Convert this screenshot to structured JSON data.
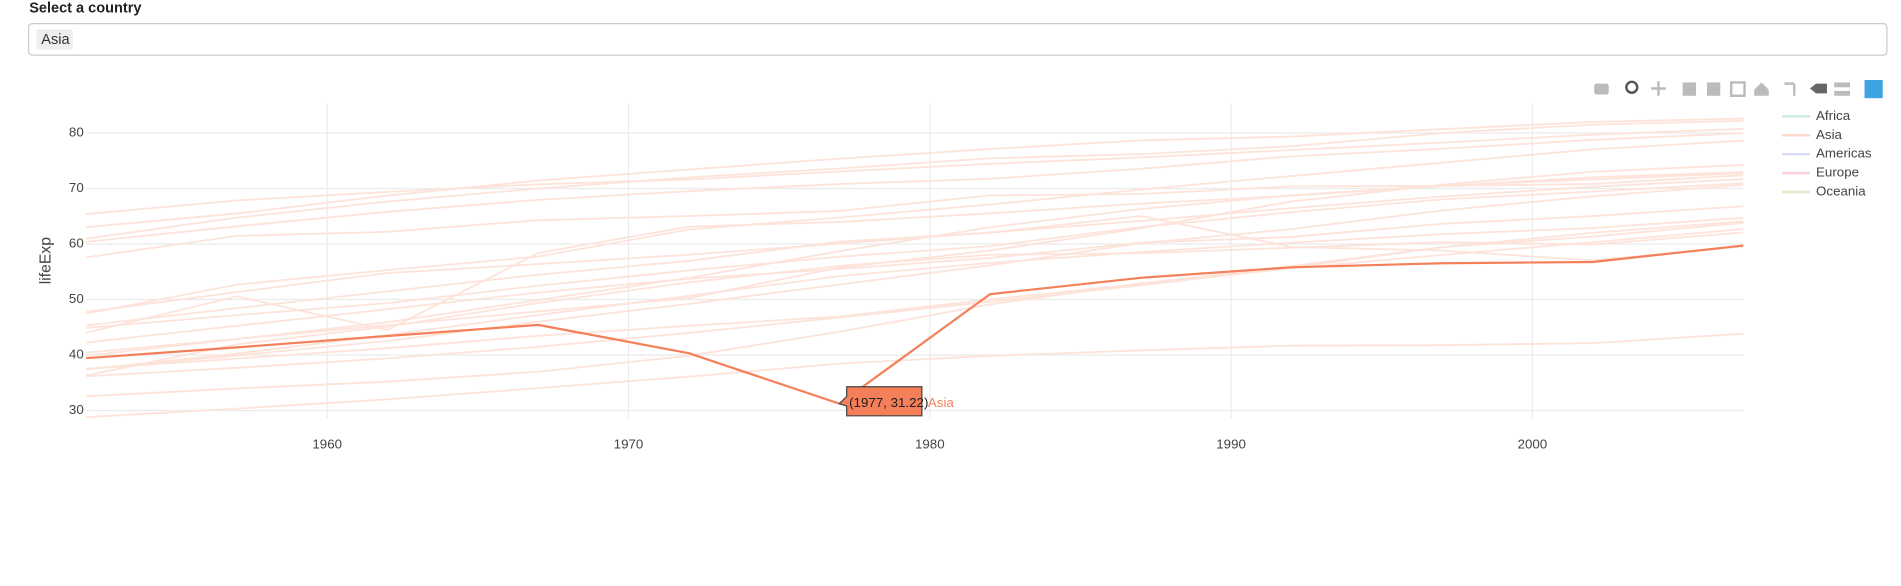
{
  "control": {
    "label": "Select a country",
    "value": "Asia"
  },
  "chart_data": {
    "type": "line",
    "ylabel": "lifeExp",
    "x": [
      1952,
      1957,
      1962,
      1967,
      1972,
      1977,
      1982,
      1987,
      1992,
      1997,
      2002,
      2007
    ],
    "xlim": [
      1952,
      2007
    ],
    "ylim": [
      28.6,
      85.4
    ],
    "xticks": [
      1960,
      1970,
      1980,
      1990,
      2000
    ],
    "yticks": [
      30,
      40,
      50,
      60,
      70,
      80
    ],
    "grid": true,
    "legend": [
      {
        "name": "Africa",
        "color": "#c9ece3"
      },
      {
        "name": "Asia",
        "color": "#fcd6c8"
      },
      {
        "name": "Americas",
        "color": "#d9dcf7"
      },
      {
        "name": "Europe",
        "color": "#f7d0da"
      },
      {
        "name": "Oceania",
        "color": "#e4ecca"
      }
    ],
    "series": [
      {
        "color": "#f47f58",
        "values": [
          39.42,
          41.37,
          43.42,
          45.42,
          40.32,
          31.22,
          50.96,
          53.91,
          55.8,
          56.53,
          56.75,
          59.72
        ]
      },
      {
        "color": "#fde3da",
        "values": [
          28.8,
          30.33,
          32.0,
          34.02,
          36.09,
          38.44,
          39.85,
          40.82,
          41.67,
          41.76,
          42.13,
          43.83
        ]
      },
      {
        "color": "#fde3da",
        "values": [
          37.48,
          39.35,
          41.22,
          43.45,
          45.25,
          46.92,
          50.01,
          52.82,
          56.02,
          59.41,
          62.01,
          64.06
        ]
      },
      {
        "color": "#fde3da",
        "values": [
          44.0,
          50.55,
          44.5,
          58.38,
          63.12,
          63.97,
          65.53,
          67.27,
          68.69,
          70.43,
          72.03,
          72.96
        ]
      },
      {
        "color": "#fde3da",
        "values": [
          37.37,
          40.25,
          43.61,
          47.19,
          50.65,
          54.21,
          56.6,
          58.55,
          60.22,
          61.77,
          62.88,
          64.7
        ]
      },
      {
        "color": "#fde3da",
        "values": [
          63.03,
          65.5,
          68.73,
          71.43,
          73.42,
          75.38,
          77.11,
          78.67,
          79.36,
          80.69,
          82.0,
          82.6
        ]
      },
      {
        "color": "#fde3da",
        "values": [
          60.96,
          64.75,
          67.65,
          70.0,
          72.0,
          73.6,
          75.45,
          76.2,
          77.6,
          80.0,
          81.5,
          82.21
        ]
      },
      {
        "color": "#fde3da",
        "values": [
          65.39,
          67.84,
          69.39,
          70.75,
          71.63,
          73.06,
          74.45,
          75.6,
          76.93,
          78.27,
          79.7,
          80.75
        ]
      },
      {
        "color": "#fde3da",
        "values": [
          45.32,
          48.44,
          51.46,
          54.46,
          56.95,
          60.41,
          62.04,
          65.04,
          59.46,
          58.81,
          57.05,
          59.55
        ]
      },
      {
        "color": "#fde3da",
        "values": [
          44.87,
          47.18,
          49.33,
          52.47,
          55.23,
          57.7,
          59.62,
          63.04,
          65.74,
          68.04,
          69.45,
          70.96
        ]
      },
      {
        "color": "#fde3da",
        "values": [
          40.41,
          42.89,
          45.36,
          47.84,
          50.25,
          55.76,
          58.82,
          62.82,
          67.66,
          70.67,
          73.02,
          74.25
        ]
      },
      {
        "color": "#fde3da",
        "values": [
          32.55,
          33.97,
          35.18,
          36.98,
          39.85,
          44.18,
          49.11,
          52.92,
          55.6,
          58.02,
          60.31,
          62.7
        ]
      },
      {
        "color": "#fde3da",
        "values": [
          36.16,
          37.69,
          39.39,
          41.47,
          43.97,
          46.75,
          49.59,
          52.54,
          55.73,
          59.43,
          61.34,
          63.79
        ]
      },
      {
        "color": "#fde3da",
        "values": [
          47.45,
          52.68,
          55.29,
          57.72,
          62.61,
          64.77,
          67.12,
          69.81,
          72.24,
          74.65,
          77.05,
          78.62
        ]
      },
      {
        "color": "#fde3da",
        "values": [
          37.47,
          39.92,
          42.52,
          46.0,
          49.2,
          52.7,
          56.16,
          60.14,
          62.68,
          66.04,
          68.59,
          70.65
        ]
      },
      {
        "color": "#fde3da",
        "values": [
          39.88,
          42.87,
          45.91,
          49.9,
          53.89,
          58.69,
          63.01,
          66.3,
          68.77,
          70.53,
          71.63,
          72.78
        ]
      },
      {
        "color": "#fde3da",
        "values": [
          42.24,
          45.25,
          48.25,
          51.25,
          53.75,
          55.49,
          57.49,
          60.22,
          61.27,
          63.63,
          65.03,
          66.8
        ]
      },
      {
        "color": "#fde3da",
        "values": [
          36.32,
          41.91,
          45.11,
          49.38,
          53.07,
          56.06,
          58.06,
          58.34,
          59.32,
          60.33,
          59.91,
          62.07
        ]
      },
      {
        "color": "#fde3da",
        "values": [
          60.4,
          63.18,
          65.8,
          67.95,
          69.52,
          70.8,
          71.76,
          73.56,
          75.79,
          77.16,
          78.77,
          79.97
        ]
      },
      {
        "color": "#fde3da",
        "values": [
          57.59,
          61.46,
          62.19,
          64.27,
          65.04,
          65.95,
          68.76,
          69.01,
          70.38,
          70.46,
          70.82,
          72.4
        ]
      },
      {
        "color": "#fde3da",
        "values": [
          47.75,
          51.33,
          54.76,
          56.39,
          58.07,
          60.06,
          62.08,
          64.15,
          66.46,
          68.56,
          70.3,
          71.69
        ]
      }
    ],
    "hover": {
      "series": 0,
      "point": 5,
      "label": "(1977, 31.22)",
      "name": "Asia"
    }
  }
}
